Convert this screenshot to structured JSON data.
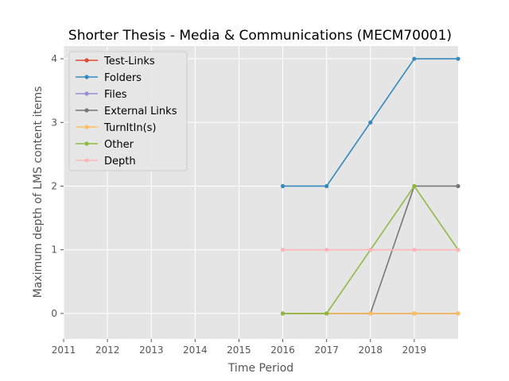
{
  "chart_data": {
    "type": "line",
    "title": "Shorter Thesis - Media & Communications (MECM70001)",
    "xlabel": "Time Period",
    "ylabel": "Maximum depth of LMS content items",
    "xlim": [
      2011,
      2020
    ],
    "ylim": [
      -0.4,
      4.2
    ],
    "xticks": [
      2011,
      2012,
      2013,
      2014,
      2015,
      2016,
      2017,
      2018,
      2019
    ],
    "yticks": [
      0,
      1,
      2,
      3,
      4
    ],
    "grid": true,
    "legend_position": "upper-left",
    "x": [
      2016,
      2017,
      2018,
      2019,
      2020
    ],
    "series": [
      {
        "name": "Test-Links",
        "color": "#E24A33",
        "values": [
          0,
          0,
          0,
          0,
          0
        ]
      },
      {
        "name": "Folders",
        "color": "#348ABD",
        "values": [
          2,
          2,
          3,
          4,
          4
        ]
      },
      {
        "name": "Files",
        "color": "#988ED5",
        "values": [
          0,
          0,
          0,
          0,
          0
        ]
      },
      {
        "name": "External Links",
        "color": "#777777",
        "values": [
          0,
          0,
          0,
          2,
          2
        ]
      },
      {
        "name": "TurnItIn(s)",
        "color": "#FBC15E",
        "values": [
          0,
          0,
          0,
          0,
          0
        ]
      },
      {
        "name": "Other",
        "color": "#8EBA42",
        "values": [
          0,
          0,
          1,
          2,
          1
        ]
      },
      {
        "name": "Depth",
        "color": "#FFB5B8",
        "values": [
          1,
          1,
          1,
          1,
          1
        ]
      }
    ]
  }
}
